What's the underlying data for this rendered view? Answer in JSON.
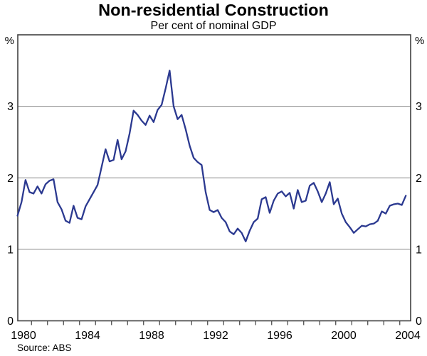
{
  "header": {
    "title": "Non-residential Construction",
    "subtitle": "Per cent of nominal GDP"
  },
  "source": {
    "label": "Source: ABS"
  },
  "colors": {
    "line": "#2b3990",
    "grid": "#8c8c8c",
    "axis": "#404040",
    "text": "#000000"
  },
  "chart_data": {
    "type": "line",
    "title": "Non-residential Construction",
    "subtitle": "Per cent of nominal GDP",
    "unit_label": "%",
    "frequency": "quarterly",
    "x_range": "1980Q1 to 2004Q2",
    "x_tick_years": [
      1980,
      1984,
      1988,
      1992,
      1996,
      2000,
      2004
    ],
    "y_ticks": [
      0,
      1,
      2,
      3
    ],
    "ylim": [
      0,
      4
    ],
    "grid": "horizontal-only",
    "legend": "none",
    "series": [
      {
        "name": "Non-residential construction, per cent of nominal GDP",
        "color": "#2b3990",
        "start": "1980Q1",
        "values": [
          1.47,
          1.66,
          1.97,
          1.8,
          1.78,
          1.88,
          1.78,
          1.91,
          1.96,
          1.98,
          1.66,
          1.56,
          1.4,
          1.37,
          1.61,
          1.44,
          1.42,
          1.6,
          1.7,
          1.8,
          1.9,
          2.15,
          2.4,
          2.23,
          2.25,
          2.53,
          2.26,
          2.37,
          2.62,
          2.94,
          2.88,
          2.8,
          2.74,
          2.87,
          2.78,
          2.95,
          3.02,
          3.25,
          3.5,
          3.0,
          2.82,
          2.88,
          2.68,
          2.45,
          2.28,
          2.22,
          2.18,
          1.8,
          1.55,
          1.52,
          1.55,
          1.44,
          1.38,
          1.25,
          1.21,
          1.29,
          1.23,
          1.11,
          1.26,
          1.38,
          1.43,
          1.7,
          1.73,
          1.51,
          1.68,
          1.78,
          1.81,
          1.74,
          1.79,
          1.57,
          1.83,
          1.66,
          1.68,
          1.89,
          1.93,
          1.81,
          1.66,
          1.78,
          1.94,
          1.63,
          1.71,
          1.5,
          1.38,
          1.31,
          1.23,
          1.28,
          1.33,
          1.32,
          1.35,
          1.36,
          1.4,
          1.53,
          1.5,
          1.61,
          1.63,
          1.64,
          1.62,
          1.75
        ]
      }
    ]
  }
}
